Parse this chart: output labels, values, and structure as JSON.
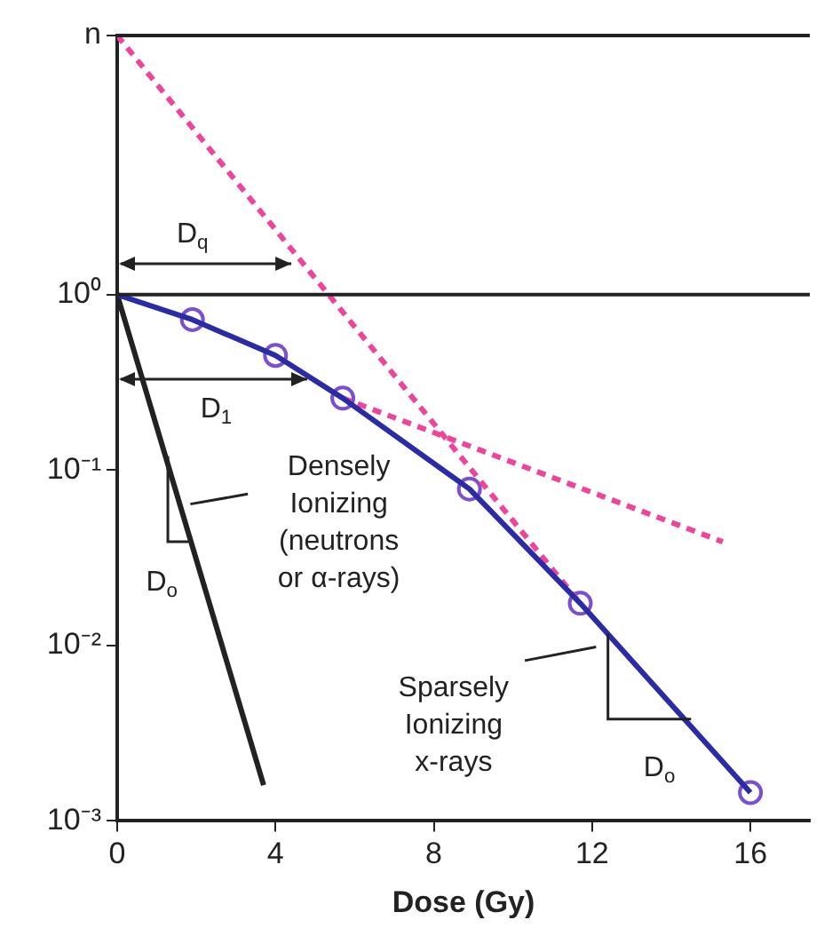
{
  "chart_data": {
    "type": "line",
    "xlabel": "Dose (Gy)",
    "log": "y",
    "xlim": [
      0,
      17.5
    ],
    "xticks": [
      0,
      4,
      8,
      12,
      16
    ],
    "ylim": [
      0.001,
      30
    ],
    "yticks": [
      {
        "value": 0.001,
        "label": "10⁻³"
      },
      {
        "value": 0.01,
        "label": "10⁻²"
      },
      {
        "value": 0.1,
        "label": "10⁻¹"
      },
      {
        "value": 1,
        "label": "10⁰"
      },
      {
        "value": 30,
        "label": "n"
      }
    ],
    "grid": false,
    "legend": false,
    "series": [
      {
        "color": "#2b2ba8",
        "marker": "none",
        "line_style": "solid",
        "x": [
          0,
          1.9,
          4,
          5.7,
          8.9,
          11.7,
          16
        ],
        "values": [
          1,
          0.72,
          0.45,
          0.257,
          0.078,
          0.0174,
          0.00145
        ]
      },
      {
        "type": "scatter",
        "color": "#7a4fd0",
        "marker": "circle",
        "x": [
          1.9,
          4,
          5.7,
          8.9,
          11.7,
          16
        ],
        "values": [
          0.72,
          0.45,
          0.257,
          0.078,
          0.0174,
          0.00145
        ]
      },
      {
        "color": "#222222",
        "marker": "none",
        "line_style": "solid",
        "x": [
          0,
          3.7
        ],
        "values": [
          1,
          0.0016
        ]
      },
      {
        "type": "line",
        "color": "#ee4499",
        "marker": "none",
        "line_style": "dashed",
        "x": [
          0,
          11.7
        ],
        "values": [
          30,
          0.0174
        ]
      },
      {
        "type": "line",
        "color": "#ee4499",
        "marker": "none",
        "line_style": "dashed",
        "x": [
          5.7,
          15.3
        ],
        "values": [
          0.257,
          0.039
        ]
      }
    ],
    "ref_lines": [
      {
        "axis": "y",
        "value": 1,
        "color": "#222222",
        "line_style": "solid"
      }
    ],
    "annotations": [
      "D$_{q}$",
      "D$_{1}$",
      {
        "text": "D$_{o}$",
        "x": 1.8,
        "y": 0.044
      },
      "Densely Ionizing (neutrons or α-rays)",
      "Sparsely Ionizing x-rays",
      "D$_{o}$"
    ]
  }
}
